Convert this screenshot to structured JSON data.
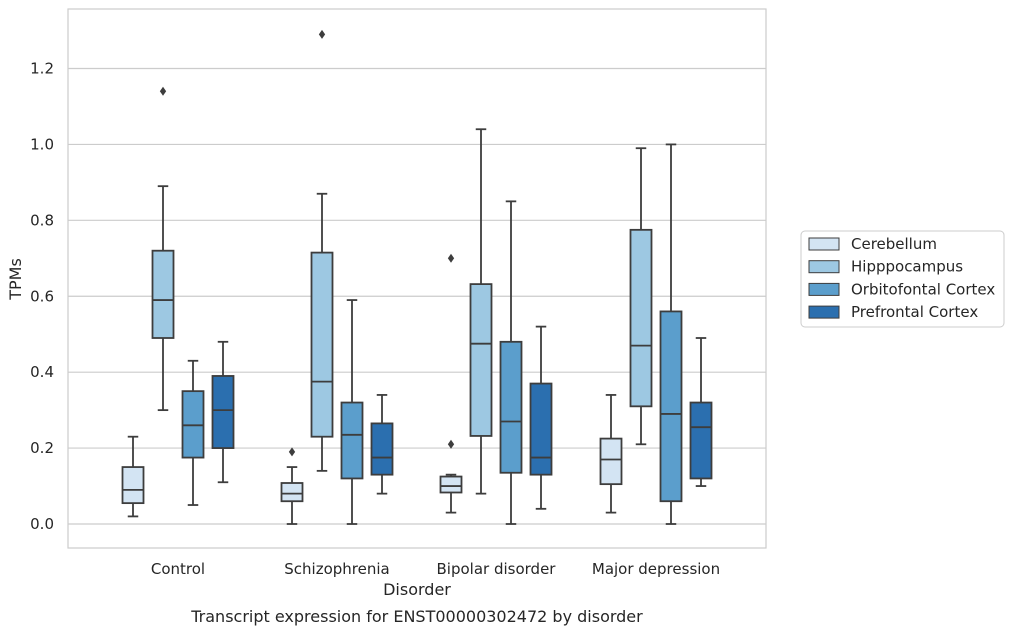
{
  "chart_data": {
    "type": "box",
    "title": "",
    "caption": "Transcript expression for ENST00000302472 by disorder",
    "xlabel": "Disorder",
    "ylabel": "TPMs",
    "ylim": [
      -0.063,
      1.355
    ],
    "yticks": [
      "0.0",
      "0.2",
      "0.4",
      "0.6",
      "0.8",
      "1.0",
      "1.2"
    ],
    "yticks_values": [
      0,
      0.2,
      0.4,
      0.6,
      0.8,
      1.0,
      1.2
    ],
    "grid": "horizontal",
    "legend_position": "right",
    "categories": [
      "Control",
      "Schizophrenia",
      "Bipolar disorder",
      "Major depression"
    ],
    "series": [
      {
        "name": "Cerebellum",
        "color": "#d3e4f3",
        "boxes": [
          {
            "whislo": 0.02,
            "q1": 0.055,
            "med": 0.09,
            "q3": 0.15,
            "whishi": 0.23,
            "fliers": []
          },
          {
            "whislo": 0.0,
            "q1": 0.06,
            "med": 0.08,
            "q3": 0.108,
            "whishi": 0.15,
            "fliers": [
              0.19
            ]
          },
          {
            "whislo": 0.03,
            "q1": 0.083,
            "med": 0.1,
            "q3": 0.125,
            "whishi": 0.13,
            "fliers": [
              0.7,
              0.21
            ]
          },
          {
            "whislo": 0.03,
            "q1": 0.105,
            "med": 0.17,
            "q3": 0.225,
            "whishi": 0.34,
            "fliers": []
          }
        ]
      },
      {
        "name": "Hipppocampus",
        "color": "#9dc8e2",
        "boxes": [
          {
            "whislo": 0.3,
            "q1": 0.49,
            "med": 0.59,
            "q3": 0.72,
            "whishi": 0.89,
            "fliers": [
              1.14
            ]
          },
          {
            "whislo": 0.14,
            "q1": 0.23,
            "med": 0.375,
            "q3": 0.715,
            "whishi": 0.87,
            "fliers": [
              1.29
            ]
          },
          {
            "whislo": 0.08,
            "q1": 0.232,
            "med": 0.475,
            "q3": 0.632,
            "whishi": 1.04,
            "fliers": []
          },
          {
            "whislo": 0.21,
            "q1": 0.31,
            "med": 0.47,
            "q3": 0.775,
            "whishi": 0.99,
            "fliers": []
          }
        ]
      },
      {
        "name": "Orbitofontal Cortex",
        "color": "#5b9ecc",
        "boxes": [
          {
            "whislo": 0.05,
            "q1": 0.175,
            "med": 0.26,
            "q3": 0.35,
            "whishi": 0.43,
            "fliers": []
          },
          {
            "whislo": 0.0,
            "q1": 0.12,
            "med": 0.235,
            "q3": 0.32,
            "whishi": 0.59,
            "fliers": []
          },
          {
            "whislo": 0.0,
            "q1": 0.135,
            "med": 0.27,
            "q3": 0.48,
            "whishi": 0.85,
            "fliers": []
          },
          {
            "whislo": 0.0,
            "q1": 0.06,
            "med": 0.29,
            "q3": 0.56,
            "whishi": 1.0,
            "fliers": []
          }
        ]
      },
      {
        "name": "Prefrontal Cortex",
        "color": "#2b6faf",
        "boxes": [
          {
            "whislo": 0.11,
            "q1": 0.2,
            "med": 0.3,
            "q3": 0.39,
            "whishi": 0.48,
            "fliers": []
          },
          {
            "whislo": 0.08,
            "q1": 0.13,
            "med": 0.175,
            "q3": 0.265,
            "whishi": 0.34,
            "fliers": []
          },
          {
            "whislo": 0.04,
            "q1": 0.13,
            "med": 0.175,
            "q3": 0.37,
            "whishi": 0.52,
            "fliers": []
          },
          {
            "whislo": 0.1,
            "q1": 0.12,
            "med": 0.255,
            "q3": 0.32,
            "whishi": 0.49,
            "fliers": []
          }
        ]
      }
    ]
  }
}
